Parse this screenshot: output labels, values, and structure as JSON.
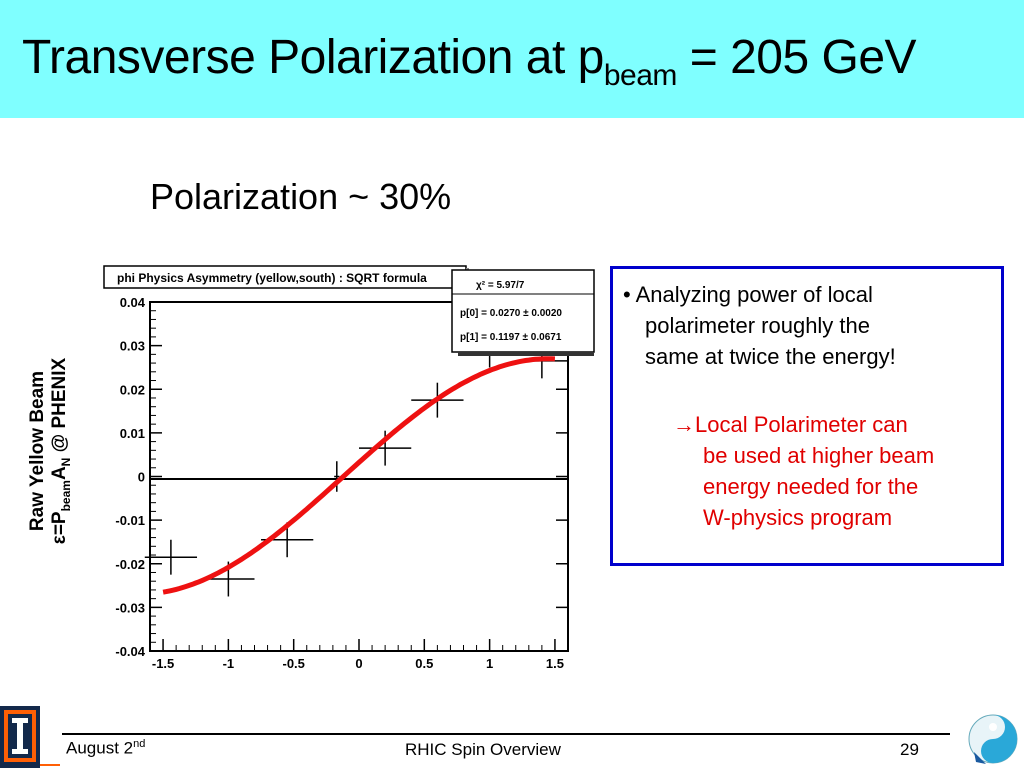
{
  "slide": {
    "title_main": "Transverse Polarization at p",
    "title_sub": "beam",
    "title_tail": " = 205 GeV",
    "subtitle": "Polarization ~ 30%"
  },
  "ylabel": {
    "line1": "Raw Yellow Beam",
    "eps": "ε=P",
    "beam_sub": "beam",
    "a": "A",
    "n_sub": "N",
    "tail": " @ PHENIX"
  },
  "chart_data": {
    "type": "scatter",
    "title": "phi Physics Asymmetry (yellow,south) : SQRT formula",
    "xlim": [
      -1.6,
      1.6
    ],
    "ylim": [
      -0.04,
      0.04
    ],
    "xticks": [
      "-1.5",
      "-1",
      "-0.5",
      "0",
      "0.5",
      "1",
      "1.5"
    ],
    "yticks": [
      "-0.04",
      "-0.03",
      "-0.02",
      "-0.01",
      "0",
      "0.01",
      "0.02",
      "0.03",
      "0.04"
    ],
    "points": [
      {
        "x": -1.44,
        "y": -0.0185,
        "xerr": 0.2,
        "yerr": 0.004
      },
      {
        "x": -1.0,
        "y": -0.0235,
        "xerr": 0.2,
        "yerr": 0.004
      },
      {
        "x": -0.55,
        "y": -0.0145,
        "xerr": 0.2,
        "yerr": 0.004
      },
      {
        "x": -0.17,
        "y": 0.0,
        "xerr": 0.02,
        "yerr": 0.0035
      },
      {
        "x": 0.2,
        "y": 0.0065,
        "xerr": 0.2,
        "yerr": 0.004
      },
      {
        "x": 0.6,
        "y": 0.0175,
        "xerr": 0.2,
        "yerr": 0.004
      },
      {
        "x": 1.0,
        "y": 0.029,
        "xerr": 0.2,
        "yerr": 0.004
      },
      {
        "x": 1.4,
        "y": 0.0265,
        "xerr": 0.2,
        "yerr": 0.004
      }
    ],
    "fit": {
      "p0": 0.027,
      "p1": 0.1197,
      "color": "#ee1111"
    },
    "stats": {
      "chi2": "χ² = 5.97/7",
      "p0": "p[0] = 0.0270 ± 0.0020",
      "p1": "p[1] = 0.1197 ± 0.0671"
    },
    "grid": false
  },
  "info": {
    "bullet_l1": "• Analyzing power of local",
    "bullet_l2": "polarimeter roughly the",
    "bullet_l3": "same at twice the energy!",
    "note_l1": "→Local Polarimeter can",
    "note_l2": "be used at higher beam",
    "note_l3": "energy needed for the",
    "note_l4": "W-physics program"
  },
  "footer": {
    "date": "August 2",
    "date_sup": "nd",
    "center": "RHIC Spin Overview",
    "page": "29"
  },
  "colors": {
    "title_bg": "#7fffff",
    "box_border": "#0000cc",
    "note_text": "#e00000",
    "fit_line": "#ee1111"
  }
}
